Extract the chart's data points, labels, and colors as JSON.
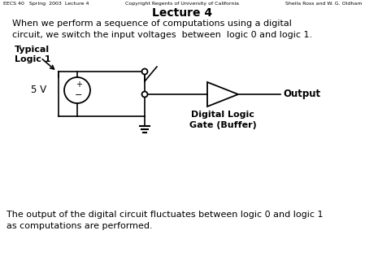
{
  "title": "Lecture 4",
  "header_left": "EECS 40   Spring  2003  Lecture 4",
  "header_center": "Copyright Regents of University of California",
  "header_right": "Sheila Ross and W. G. Oldham",
  "body_text": "When we perform a sequence of computations using a digital\ncircuit, we switch the input voltages  between  logic 0 and logic 1.",
  "footer_text": "The output of the digital circuit fluctuates between logic 0 and logic 1\nas computations are performed.",
  "typical_label": "Typical\nLogic 1",
  "voltage_label": "5 V",
  "output_label": "Output",
  "gate_label": "Digital Logic\nGate (Buffer)",
  "bg_color": "#ffffff",
  "text_color": "#000000",
  "line_color": "#000000"
}
